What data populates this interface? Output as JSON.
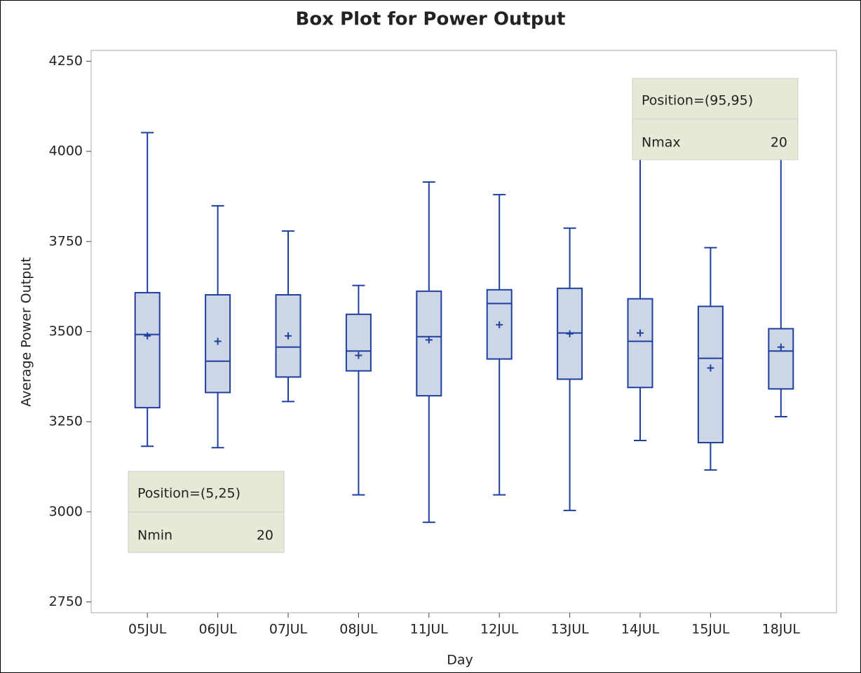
{
  "chart_data": {
    "type": "box",
    "title": "Box Plot for Power Output",
    "x_label": "Day",
    "y_label": "Average Power Output",
    "categories": [
      "05JUL",
      "06JUL",
      "07JUL",
      "08JUL",
      "11JUL",
      "12JUL",
      "13JUL",
      "14JUL",
      "15JUL",
      "18JUL"
    ],
    "min": [
      3182,
      3178,
      3306,
      3047,
      2971,
      3047,
      3004,
      3198,
      3116,
      3264
    ],
    "q1": [
      3289,
      3331,
      3374,
      3391,
      3322,
      3424,
      3368,
      3345,
      3192,
      3341
    ],
    "median": [
      3492,
      3418,
      3457,
      3446,
      3486,
      3578,
      3496,
      3473,
      3426,
      3446
    ],
    "q3": [
      3608,
      3602,
      3602,
      3548,
      3612,
      3616,
      3620,
      3591,
      3570,
      3508
    ],
    "max": [
      4052,
      3849,
      3779,
      3628,
      3915,
      3880,
      3787,
      4100,
      3733,
      4150
    ],
    "mean": [
      3488,
      3473,
      3488,
      3434,
      3477,
      3519,
      3494,
      3496,
      3399,
      3457
    ],
    "color": "#1f3f9f",
    "fill": "#cdd6e6",
    "ylim": [
      2720,
      4280
    ],
    "yticks": [
      2750,
      3000,
      3250,
      3500,
      3750,
      4000,
      4250
    ],
    "insets": [
      {
        "corner": "bottom-left",
        "title": "Position=(5,25)",
        "label": "Nmin",
        "value": "20"
      },
      {
        "corner": "top-right",
        "title": "Position=(95,95)",
        "label": "Nmax",
        "value": "20"
      }
    ]
  }
}
